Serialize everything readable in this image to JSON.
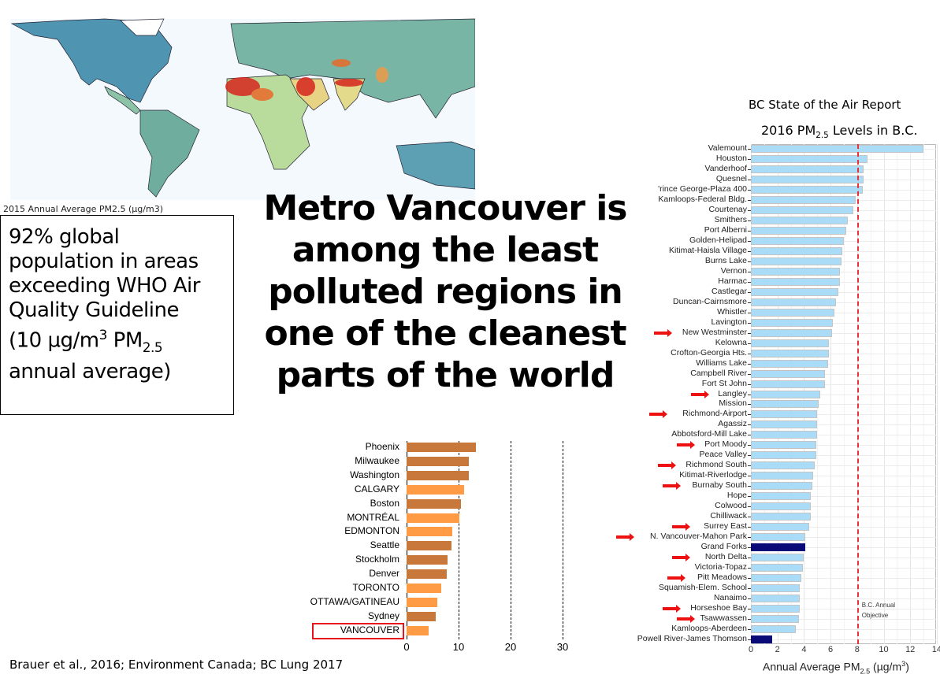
{
  "map": {
    "caption": "2015 Annual Average PM2.5 (µg/m3)",
    "colors": {
      "ocean": "#f4f9fd",
      "low": "#4f94b0",
      "mid": "#9fd0a4",
      "high": "#f0e08a",
      "very_high": "#d7261e"
    }
  },
  "info_box": {
    "line1": "92% global",
    "line2": "population in areas",
    "line3": "exceeding WHO Air",
    "line4": "Quality Guideline",
    "line5_pre": "(10 µg/m",
    "line5_sup": "3",
    "line5_mid": " PM",
    "line5_sub": "2.5",
    "line6": "annual average)"
  },
  "headline": {
    "lines": [
      "Metro Vancouver is",
      "among the least",
      "polluted regions in",
      "one of the cleanest",
      "parts of the world"
    ]
  },
  "citation": "Brauer et al., 2016; Environment Canada; BC Lung 2017",
  "chart_data": [
    {
      "type": "bar",
      "orientation": "horizontal",
      "categories": [
        "Phoenix",
        "Milwaukee",
        "Washington",
        "CALGARY",
        "Boston",
        "MONTRÉAL",
        "EDMONTON",
        "Seattle",
        "Stockholm",
        "Denver",
        "TORONTO",
        "OTTAWA/GATINEAU",
        "Sydney",
        "VANCOUVER"
      ],
      "values": [
        13.3,
        12.0,
        11.9,
        11.0,
        10.4,
        10.1,
        8.8,
        8.6,
        7.9,
        7.7,
        6.6,
        5.9,
        5.6,
        4.2
      ],
      "canadian": [
        false,
        false,
        false,
        true,
        false,
        true,
        true,
        false,
        false,
        false,
        true,
        true,
        false,
        true
      ],
      "highlighted": "VANCOUVER",
      "xlim": [
        0,
        30
      ],
      "xticks": [
        "0",
        "10",
        "20",
        "30"
      ],
      "reference_lines": [
        10,
        20,
        30
      ],
      "colors": {
        "canadian": "#ff9a45",
        "other": "#c8783a",
        "highlight_box": "#e8141b"
      }
    },
    {
      "type": "bar",
      "orientation": "horizontal",
      "title": "BC State of the Air Report",
      "subtitle_pre": "2016 PM",
      "subtitle_sub": "2.5",
      "subtitle_post": " Levels in B.C.",
      "xlabel_pre": "Annual Average PM",
      "xlabel_sub": "2.5",
      "xlabel_post": " (µg/m",
      "xlabel_sup": "3",
      "xlabel_end": ")",
      "xlim": [
        0,
        14
      ],
      "xticks": [
        "0",
        "2",
        "4",
        "6",
        "8",
        "10",
        "12",
        "14"
      ],
      "grid": true,
      "objective": {
        "value": 8,
        "label_line1": "B.C. Annual",
        "label_line2": "Objective",
        "color": "#e8323a"
      },
      "categories": [
        "Valemount",
        "Houston",
        "Vanderhoof",
        "Quesnel",
        "'rince George-Plaza 400",
        "Kamloops-Federal Bldg.",
        "Courtenay",
        "Smithers",
        "Port Alberni",
        "Golden-Helipad",
        "Kitimat-Haisla Village",
        "Burns Lake",
        "Vernon",
        "Harmac",
        "Castlegar",
        "Duncan-Cairnsmore",
        "Whistler",
        "Lavington",
        "New Westminster",
        "Kelowna",
        "Crofton-Georgia Hts.",
        "Williams Lake",
        "Campbell River",
        "Fort St John",
        "Langley",
        "Mission",
        "Richmond-Airport",
        "Agassiz",
        "Abbotsford-Mill Lake",
        "Port Moody",
        "Peace Valley",
        "Richmond South",
        "Kitimat-Riverlodge",
        "Burnaby South",
        "Hope",
        "Colwood",
        "Chilliwack",
        "Surrey East",
        "N. Vancouver-Mahon Park",
        "Grand Forks",
        "North Delta",
        "Victoria-Topaz",
        "Pitt Meadows",
        "Squamish-Elem. School",
        "Nanaimo",
        "Horseshoe Bay",
        "Tsawwassen",
        "Kamloops-Aberdeen",
        "Powell River-James Thomson"
      ],
      "values": [
        13.0,
        8.8,
        8.5,
        8.5,
        8.4,
        7.9,
        7.7,
        7.3,
        7.2,
        7.0,
        6.9,
        6.8,
        6.7,
        6.7,
        6.6,
        6.4,
        6.3,
        6.2,
        6.1,
        5.9,
        5.9,
        5.8,
        5.6,
        5.6,
        5.2,
        5.1,
        5.0,
        5.0,
        5.0,
        4.9,
        4.9,
        4.8,
        4.7,
        4.6,
        4.5,
        4.5,
        4.5,
        4.4,
        4.1,
        4.1,
        4.0,
        3.9,
        3.8,
        3.7,
        3.7,
        3.7,
        3.6,
        3.4,
        1.6
      ],
      "arrowed": [
        "New Westminster",
        "Langley",
        "Richmond-Airport",
        "Port Moody",
        "Richmond South",
        "Burnaby South",
        "Surrey East",
        "N. Vancouver-Mahon Park",
        "North Delta",
        "Pitt Meadows",
        "Horseshoe Bay",
        "Tsawwassen"
      ],
      "dark": [
        "Grand Forks",
        "Powell River-James Thomson"
      ],
      "colors": {
        "bar": "#aadcf7",
        "bar_edge": "#c4c4c4",
        "dark": "#0a0a78",
        "arrow": "#ee1111"
      }
    }
  ]
}
